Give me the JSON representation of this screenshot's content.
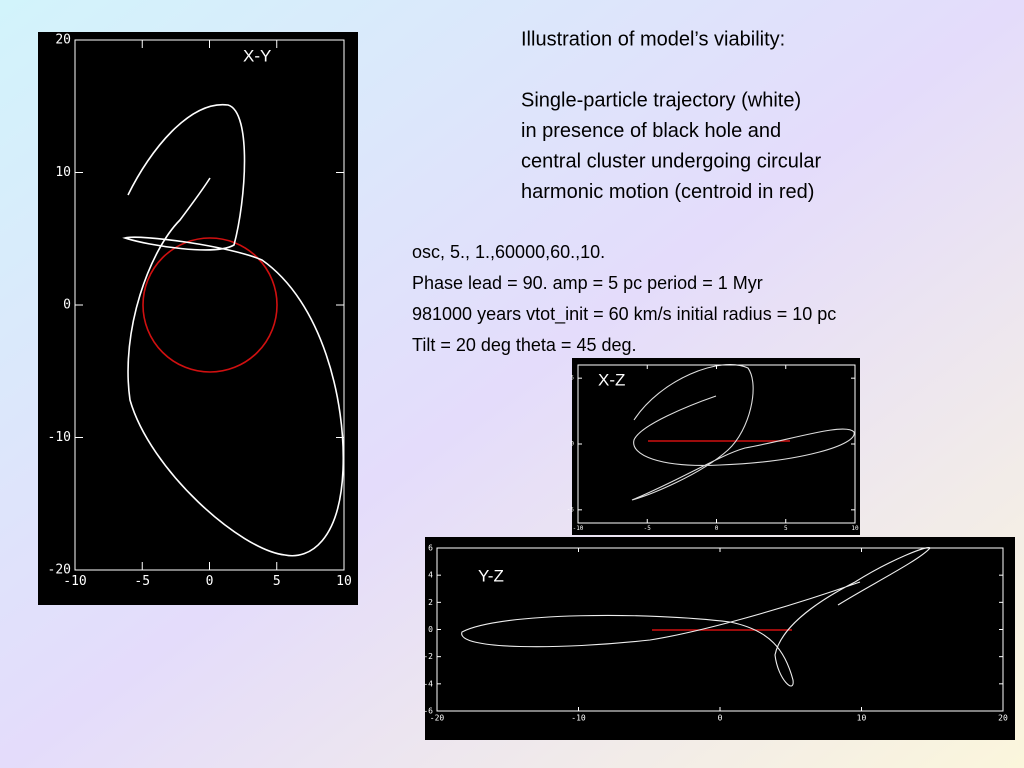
{
  "header": {
    "title": "Illustration of model’s viability:",
    "description": [
      "Single-particle trajectory (white)",
      "in presence of black hole and",
      "central cluster undergoing circular",
      "harmonic motion (centroid in red)"
    ]
  },
  "parameters": [
    "osc, 5., 1.,60000,60.,10.",
    "Phase lead = 90.  amp = 5 pc  period = 1 Myr",
    "981000 years  vtot_init = 60 km/s  initial radius = 10 pc",
    "Tilt = 20 deg    theta = 45 deg."
  ],
  "plots": [
    {
      "label": "X-Y",
      "xlim": [
        -10,
        10
      ],
      "ylim": [
        -20,
        20
      ],
      "xticks": [
        -10,
        -5,
        0,
        5,
        10
      ],
      "yticks": [
        -20,
        -10,
        0,
        10,
        20
      ]
    },
    {
      "label": "X-Z",
      "xlim": [
        -10,
        10
      ],
      "ylim": [
        -6,
        6
      ],
      "xticks": [
        -10,
        -5,
        0,
        5,
        10
      ],
      "yticks": [
        -5,
        0,
        5
      ]
    },
    {
      "label": "Y-Z",
      "xlim": [
        -20,
        20
      ],
      "ylim": [
        -6,
        6
      ],
      "xticks": [
        -20,
        -10,
        0,
        10,
        20
      ],
      "yticks": [
        -6,
        -4,
        -2,
        0,
        2,
        4,
        6
      ]
    }
  ]
}
